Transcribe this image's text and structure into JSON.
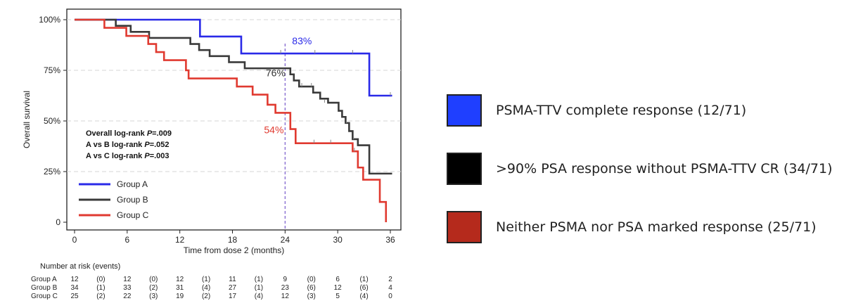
{
  "chart_data": {
    "type": "line",
    "subtype": "kaplan-meier-step",
    "xlabel": "Time from dose 2 (months)",
    "ylabel": "Overall survival",
    "xlim": [
      0,
      36
    ],
    "ylim": [
      0,
      1
    ],
    "x_ticks": [
      "0",
      "6",
      "12",
      "18",
      "24",
      "30",
      "36"
    ],
    "y_ticks": [
      "0",
      "25%",
      "50%",
      "75%",
      "100%"
    ],
    "grid": "horizontal-dashed",
    "series": [
      {
        "name": "Group A",
        "color": "#2a2ae8",
        "steps": [
          [
            0,
            1.0
          ],
          [
            14.3,
            0.917
          ],
          [
            19.0,
            0.833
          ],
          [
            33.6,
            0.625
          ],
          [
            36.2,
            0.625
          ]
        ],
        "censor_marks": [
          [
            23.5,
            0.833
          ],
          [
            27.4,
            0.833
          ],
          [
            31.7,
            0.833
          ],
          [
            36.0,
            0.625
          ]
        ]
      },
      {
        "name": "Group B",
        "color": "#3a3a3a",
        "steps": [
          [
            0,
            1.0
          ],
          [
            4.7,
            0.97
          ],
          [
            6.4,
            0.94
          ],
          [
            8.5,
            0.91
          ],
          [
            13.2,
            0.88
          ],
          [
            14.2,
            0.85
          ],
          [
            15.4,
            0.82
          ],
          [
            17.6,
            0.79
          ],
          [
            19.4,
            0.76
          ],
          [
            24.6,
            0.73
          ],
          [
            25.0,
            0.7
          ],
          [
            25.6,
            0.67
          ],
          [
            27.2,
            0.64
          ],
          [
            28.0,
            0.61
          ],
          [
            28.9,
            0.59
          ],
          [
            30.1,
            0.55
          ],
          [
            30.5,
            0.52
          ],
          [
            30.9,
            0.49
          ],
          [
            31.3,
            0.45
          ],
          [
            31.7,
            0.41
          ],
          [
            32.3,
            0.38
          ],
          [
            33.6,
            0.24
          ],
          [
            36.2,
            0.24
          ]
        ],
        "censor_marks": [
          [
            25.9,
            0.67
          ],
          [
            27.0,
            0.67
          ],
          [
            28.5,
            0.59
          ],
          [
            31.0,
            0.49
          ],
          [
            31.8,
            0.41
          ]
        ]
      },
      {
        "name": "Group C",
        "color": "#e03a30",
        "steps": [
          [
            0,
            1.0
          ],
          [
            3.4,
            0.96
          ],
          [
            5.9,
            0.92
          ],
          [
            8.4,
            0.88
          ],
          [
            9.3,
            0.84
          ],
          [
            10.2,
            0.8
          ],
          [
            12.7,
            0.75
          ],
          [
            13.0,
            0.71
          ],
          [
            18.5,
            0.67
          ],
          [
            20.3,
            0.63
          ],
          [
            22.0,
            0.58
          ],
          [
            22.9,
            0.54
          ],
          [
            24.6,
            0.46
          ],
          [
            25.2,
            0.39
          ],
          [
            31.7,
            0.35
          ],
          [
            32.3,
            0.27
          ],
          [
            32.9,
            0.21
          ],
          [
            34.8,
            0.1
          ],
          [
            35.5,
            0.0
          ]
        ],
        "censor_marks": [
          [
            27.3,
            0.39
          ],
          [
            29.2,
            0.39
          ],
          [
            31.9,
            0.35
          ]
        ]
      }
    ],
    "reference_line": {
      "x": 24,
      "color": "#7a5ccc"
    },
    "annotations": [
      {
        "text": "83%",
        "x": 24.8,
        "y": 0.878,
        "color": "#2a2ae8"
      },
      {
        "text": "76%",
        "x": 21.8,
        "y": 0.72,
        "color": "#333333"
      },
      {
        "text": "54%",
        "x": 21.6,
        "y": 0.44,
        "color": "#e03a30"
      }
    ],
    "stats_box": [
      {
        "prefix": "Overall log-rank ",
        "p_letter": "P",
        "value": "=.009"
      },
      {
        "prefix": "A vs B log-rank ",
        "p_letter": "P",
        "value": "=.052"
      },
      {
        "prefix": "A vs C log-rank ",
        "p_letter": "P",
        "value": "=.003"
      }
    ],
    "legend_placement": "lower-left",
    "risk_table": {
      "title": "Number at risk (events)",
      "rows": [
        {
          "label": "Group A",
          "cells": [
            "12",
            "(0)",
            "12",
            "(0)",
            "12",
            "(1)",
            "11",
            "(1)",
            "9",
            "(0)",
            "6",
            "(1)",
            "2"
          ]
        },
        {
          "label": "Group B",
          "cells": [
            "34",
            "(1)",
            "33",
            "(2)",
            "31",
            "(4)",
            "27",
            "(1)",
            "23",
            "(6)",
            "12",
            "(6)",
            "4"
          ]
        },
        {
          "label": "Group C",
          "cells": [
            "25",
            "(2)",
            "22",
            "(3)",
            "19",
            "(2)",
            "17",
            "(4)",
            "12",
            "(3)",
            "5",
            "(4)",
            "0"
          ]
        }
      ]
    }
  },
  "group_legend": [
    {
      "label": "PSMA-TTV complete response (12/71)",
      "color": "#1f3fff"
    },
    {
      "label": ">90% PSA response without PSMA-TTV CR (34/71)",
      "color": "#000000"
    },
    {
      "label": "Neither PSMA nor PSA marked response (25/71)",
      "color": "#b52a1c"
    }
  ]
}
